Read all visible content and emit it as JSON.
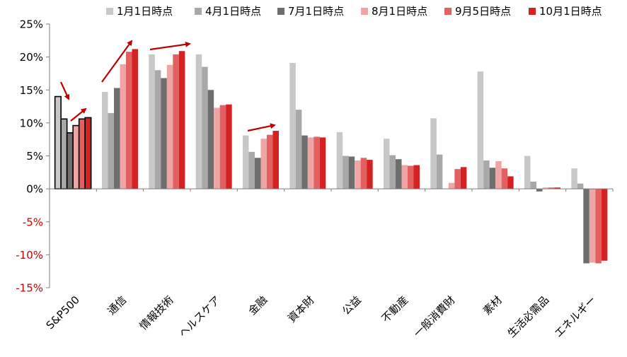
{
  "chart_data": {
    "type": "bar",
    "categories": [
      "S&P500",
      "通信",
      "情報技術",
      "ヘルスケア",
      "金融",
      "資本財",
      "公益",
      "不動産",
      "一般消費財",
      "素材",
      "生活必需品",
      "エネルギー"
    ],
    "series": [
      {
        "name": "1月1日時点",
        "color": "#c8c8c8",
        "values": [
          14.0,
          14.7,
          20.4,
          20.4,
          8.1,
          19.1,
          8.6,
          7.6,
          10.7,
          17.8,
          5.0,
          3.1
        ]
      },
      {
        "name": "4月1日時点",
        "color": "#a8a8a8",
        "values": [
          10.6,
          11.5,
          18.0,
          18.5,
          5.6,
          12.0,
          5.0,
          5.1,
          5.2,
          4.3,
          1.1,
          0.8
        ]
      },
      {
        "name": "7月1日時点",
        "color": "#6e6e6e",
        "values": [
          8.5,
          15.3,
          16.8,
          15.0,
          4.7,
          8.1,
          4.9,
          4.5,
          0.0,
          3.2,
          -0.4,
          -11.3
        ]
      },
      {
        "name": "8月1日時点",
        "color": "#f0a5a5",
        "values": [
          9.6,
          18.9,
          18.8,
          12.3,
          7.6,
          7.8,
          4.3,
          3.6,
          0.9,
          4.2,
          0.2,
          -11.2
        ]
      },
      {
        "name": "9月5日時点",
        "color": "#e36060",
        "values": [
          10.6,
          20.8,
          20.4,
          12.7,
          8.2,
          7.9,
          4.7,
          3.5,
          3.0,
          3.1,
          0.2,
          -11.3
        ]
      },
      {
        "name": "10月1日時点",
        "color": "#d42121",
        "values": [
          10.8,
          21.2,
          20.9,
          12.8,
          8.8,
          7.8,
          4.4,
          3.6,
          3.3,
          1.9,
          0.2,
          -10.9
        ]
      }
    ],
    "title": "",
    "xlabel": "",
    "ylabel": "",
    "ylim": [
      -15,
      25
    ],
    "yticks": [
      "25%",
      "20%",
      "15%",
      "10%",
      "5%",
      "0%",
      "-5%",
      "-10%",
      "-15%"
    ],
    "grid": false,
    "legend_position": "top",
    "highlighted_category": "S&P500",
    "negative_tick_color": "#cc0000",
    "arrow_color": "#c00000"
  }
}
